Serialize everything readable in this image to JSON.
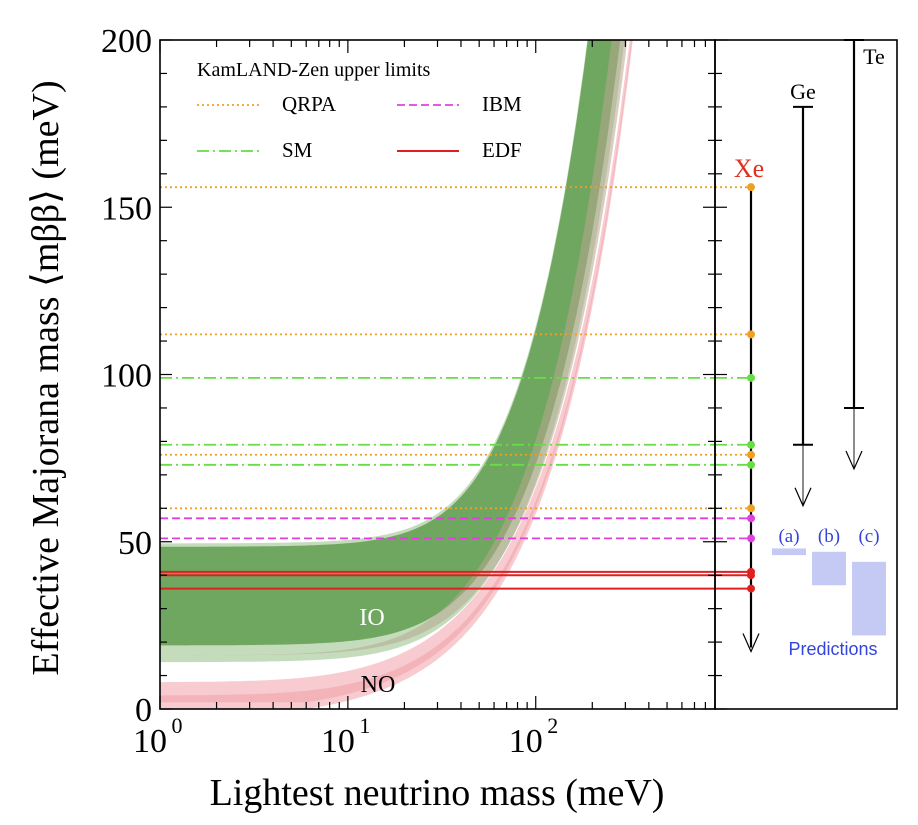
{
  "chart_data": {
    "type": "line",
    "xlabel": "Lightest neutrino mass  (meV)",
    "ylabel": "Effective Majorana mass ⟨mββ⟩  (meV)",
    "xscale": "log",
    "xlim": [
      1,
      900
    ],
    "ylim": [
      0,
      200
    ],
    "x_ticks": [
      {
        "base": "10",
        "exp": "0",
        "value": 1
      },
      {
        "base": "10",
        "exp": "1",
        "value": 10
      },
      {
        "base": "10",
        "exp": "2",
        "value": 100
      }
    ],
    "y_ticks": [
      {
        "label": "0",
        "value": 0
      },
      {
        "label": "50",
        "value": 50
      },
      {
        "label": "100",
        "value": 100
      },
      {
        "label": "150",
        "value": 150
      },
      {
        "label": "200",
        "value": 200
      }
    ],
    "legend": {
      "title": "KamLAND-Zen upper limits",
      "position": "top-left",
      "entries": [
        {
          "label": "QRPA",
          "color": "#f0a020",
          "style": "dotted"
        },
        {
          "label": "IBM",
          "color": "#e040e0",
          "style": "dashed"
        },
        {
          "label": "SM",
          "color": "#66dd44",
          "style": "dashdot"
        },
        {
          "label": "EDF",
          "color": "#e02020",
          "style": "solid"
        }
      ]
    },
    "bands": [
      {
        "name": "IO",
        "label": "IO",
        "color": "#5a9a4a",
        "lower_flat": 16,
        "upper_flat": 48.5
      },
      {
        "name": "NO",
        "label": "NO",
        "color": "#f0a0a8",
        "lower_flat": 0,
        "upper_flat": 4
      }
    ],
    "limits": [
      {
        "method": "QRPA",
        "value": 156
      },
      {
        "method": "QRPA",
        "value": 112
      },
      {
        "method": "QRPA",
        "value": 76
      },
      {
        "method": "QRPA",
        "value": 60
      },
      {
        "method": "SM",
        "value": 99
      },
      {
        "method": "SM",
        "value": 79
      },
      {
        "method": "SM",
        "value": 73
      },
      {
        "method": "IBM",
        "value": 57
      },
      {
        "method": "IBM",
        "value": 51
      },
      {
        "method": "EDF",
        "value": 41
      },
      {
        "method": "EDF",
        "value": 40
      },
      {
        "method": "EDF",
        "value": 36
      }
    ],
    "isotopes": [
      {
        "name": "Xe",
        "color": "#e03020",
        "top": 156,
        "bottom": 16
      },
      {
        "name": "Ge",
        "color": "#000000",
        "top": 180,
        "bottom": 79
      },
      {
        "name": "Te",
        "color": "#000000",
        "top": 200,
        "bottom": 90
      }
    ],
    "predictions": {
      "label": "Predictions",
      "color": "#3344dd",
      "items": [
        {
          "label": "(a)",
          "low": 46,
          "high": 48
        },
        {
          "label": "(b)",
          "low": 37,
          "high": 47
        },
        {
          "label": "(c)",
          "low": 22,
          "high": 44
        }
      ]
    }
  }
}
